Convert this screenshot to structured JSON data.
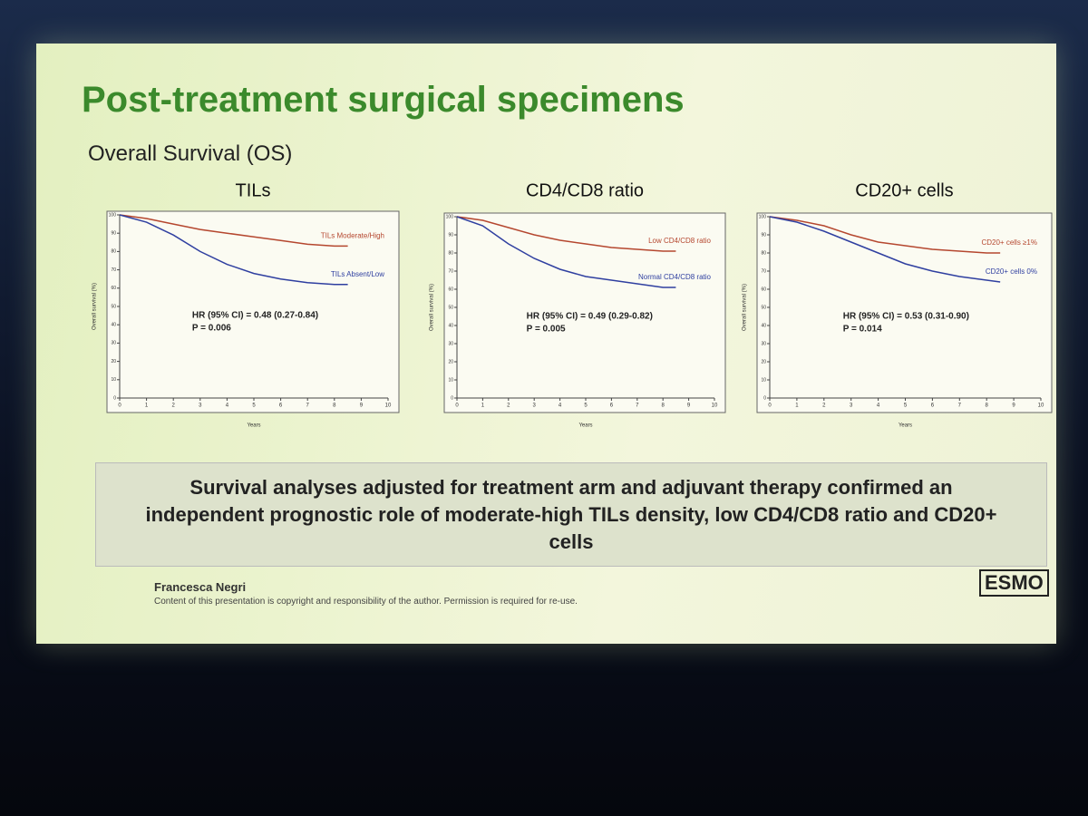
{
  "slide": {
    "title": "Post-treatment surgical specimens",
    "subtitle": "Overall Survival (OS)",
    "conclusion": "Survival analyses adjusted for treatment arm and adjuvant therapy confirmed an independent prognostic role of moderate-high TILs density, low CD4/CD8 ratio and CD20+ cells",
    "author": "Francesca Negri",
    "disclaimer": "Content of this presentation is copyright and responsibility of the author. Permission is required for re-use.",
    "logo": "ESMO"
  },
  "chart_data": [
    {
      "type": "line",
      "title": "TILs",
      "y_label": "Overall survival (%)",
      "x_label": "Years",
      "x": [
        0,
        1,
        2,
        3,
        4,
        5,
        6,
        7,
        8,
        8.5
      ],
      "xlim": [
        0,
        10
      ],
      "xticks": [
        0,
        1,
        2,
        3,
        4,
        5,
        6,
        7,
        8,
        9,
        10
      ],
      "ylim": [
        0,
        100
      ],
      "yticks": [
        0,
        10,
        20,
        30,
        40,
        50,
        60,
        70,
        80,
        90,
        100
      ],
      "series": [
        {
          "name": "TILs Moderate/High",
          "color": "#b5472f",
          "values": [
            100,
            98,
            95,
            92,
            90,
            88,
            86,
            84,
            83,
            83
          ]
        },
        {
          "name": "TILs Absent/Low",
          "color": "#2f3fa0",
          "values": [
            100,
            96,
            89,
            80,
            73,
            68,
            65,
            63,
            62,
            62
          ]
        }
      ],
      "annotations": [
        "HR (95% CI) = 0.48 (0.27-0.84)",
        "P = 0.006"
      ]
    },
    {
      "type": "line",
      "title": "CD4/CD8 ratio",
      "y_label": "Overall survival (%)",
      "x_label": "Years",
      "x": [
        0,
        1,
        2,
        3,
        4,
        5,
        6,
        7,
        8,
        8.5
      ],
      "xlim": [
        0,
        10
      ],
      "xticks": [
        0,
        1,
        2,
        3,
        4,
        5,
        6,
        7,
        8,
        9,
        10
      ],
      "ylim": [
        0,
        100
      ],
      "yticks": [
        0,
        10,
        20,
        30,
        40,
        50,
        60,
        70,
        80,
        90,
        100
      ],
      "series": [
        {
          "name": "Low CD4/CD8 ratio",
          "color": "#b5472f",
          "values": [
            100,
            98,
            94,
            90,
            87,
            85,
            83,
            82,
            81,
            81
          ]
        },
        {
          "name": "Normal CD4/CD8 ratio",
          "color": "#2f3fa0",
          "values": [
            100,
            95,
            85,
            77,
            71,
            67,
            65,
            63,
            61,
            61
          ]
        }
      ],
      "annotations": [
        "HR (95% CI) = 0.49 (0.29-0.82)",
        "P = 0.005"
      ]
    },
    {
      "type": "line",
      "title": "CD20+ cells",
      "y_label": "Overall survival (%)",
      "x_label": "Years",
      "x": [
        0,
        1,
        2,
        3,
        4,
        5,
        6,
        7,
        8,
        8.5
      ],
      "xlim": [
        0,
        10
      ],
      "xticks": [
        0,
        1,
        2,
        3,
        4,
        5,
        6,
        7,
        8,
        9,
        10
      ],
      "ylim": [
        0,
        100
      ],
      "yticks": [
        0,
        10,
        20,
        30,
        40,
        50,
        60,
        70,
        80,
        90,
        100
      ],
      "series": [
        {
          "name": "CD20+ cells ≥1%",
          "color": "#b5472f",
          "values": [
            100,
            98,
            95,
            90,
            86,
            84,
            82,
            81,
            80,
            80
          ]
        },
        {
          "name": "CD20+ cells 0%",
          "color": "#2f3fa0",
          "values": [
            100,
            97,
            92,
            86,
            80,
            74,
            70,
            67,
            65,
            64
          ]
        }
      ],
      "annotations": [
        "HR (95% CI) = 0.53 (0.31-0.90)",
        "P = 0.014"
      ]
    }
  ]
}
